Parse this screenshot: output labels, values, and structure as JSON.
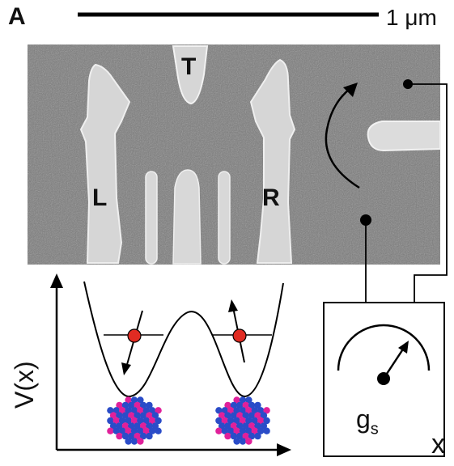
{
  "panel_letter": "A",
  "scale_bar_label": "1 μm",
  "gates": {
    "top": "T",
    "left": "L",
    "right": "R"
  },
  "axis_y_label": "V(x)",
  "axis_x_label": "x",
  "sensor_label": {
    "main": "g",
    "sub": "s"
  },
  "colors": {
    "micrograph_bg": "#7b7b7b",
    "gate_fill": "#d9d9d9",
    "electron": "#e02b22",
    "lattice_blue": "#2a4cc8",
    "lattice_pink": "#e0209a"
  }
}
